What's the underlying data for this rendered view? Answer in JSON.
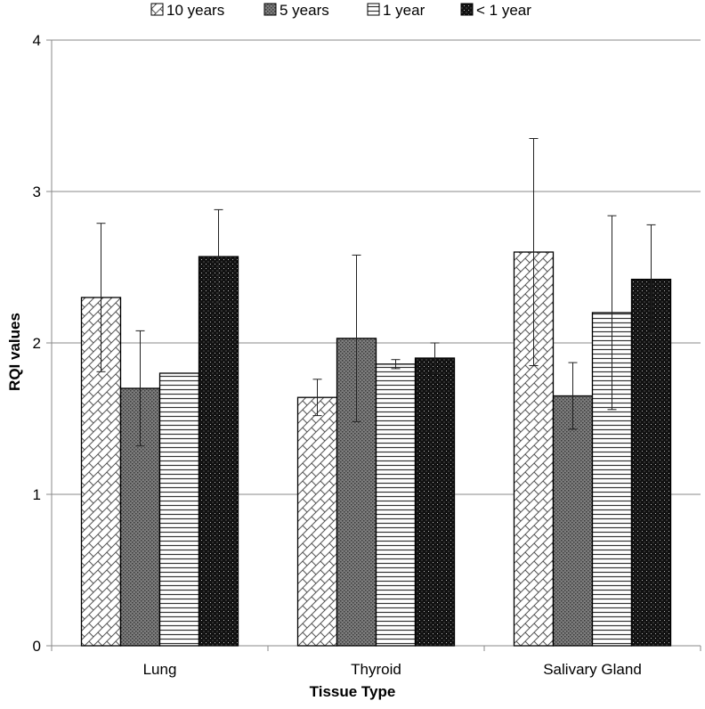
{
  "chart_data": {
    "type": "bar",
    "title": "",
    "xlabel": "Tissue Type",
    "ylabel": "RQI values",
    "ylim": [
      0,
      4
    ],
    "yticks": [
      0,
      1,
      2,
      3,
      4
    ],
    "grid": true,
    "legend_position": "top",
    "categories": [
      "Lung",
      "Thyroid",
      "Salivary Gland"
    ],
    "series": [
      {
        "name": "10 years",
        "pattern": "diagonal-crosshatch",
        "values": [
          2.3,
          1.64,
          2.6
        ],
        "error": [
          0.49,
          0.12,
          0.75
        ]
      },
      {
        "name": "5 years",
        "pattern": "dense-dots",
        "values": [
          1.7,
          2.03,
          1.65
        ],
        "error": [
          0.38,
          0.55,
          0.22
        ]
      },
      {
        "name": "1 year",
        "pattern": "horizontal-lines",
        "values": [
          1.8,
          1.86,
          2.2
        ],
        "error": [
          0.0,
          0.03,
          0.64
        ]
      },
      {
        "name": "< 1 year",
        "pattern": "black-dotted",
        "values": [
          2.57,
          1.9,
          2.42
        ],
        "error": [
          0.31,
          0.1,
          0.36
        ]
      }
    ]
  }
}
